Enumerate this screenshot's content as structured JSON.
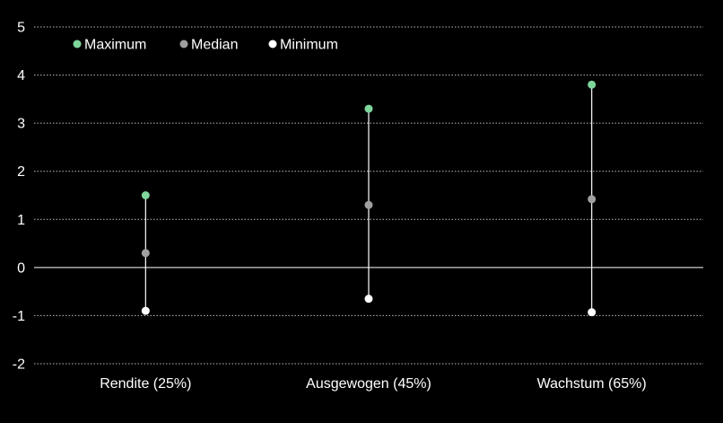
{
  "chart_data": {
    "type": "scatter",
    "subtype": "high-low-median",
    "categories": [
      "Rendite (25%)",
      "Ausgewogen (45%)",
      "Wachstum (65%)"
    ],
    "series": [
      {
        "name": "Maximum",
        "color": "#7ed69a",
        "values": [
          1.5,
          3.3,
          3.8
        ]
      },
      {
        "name": "Median",
        "color": "#a0a0a0",
        "values": [
          0.3,
          1.3,
          1.42
        ]
      },
      {
        "name": "Minimum",
        "color": "#ffffff",
        "values": [
          -0.9,
          -0.65,
          -0.93
        ]
      }
    ],
    "y_ticks": [
      "5",
      "4",
      "3",
      "2",
      "1",
      "0",
      "-1",
      "-2"
    ],
    "ylim": [
      -2,
      5
    ],
    "grid": true,
    "grid_style": "dotted",
    "legend_position": "top-left",
    "background": "#000000",
    "axis_color": "#ffffff",
    "connector_color": "#ffffff"
  }
}
